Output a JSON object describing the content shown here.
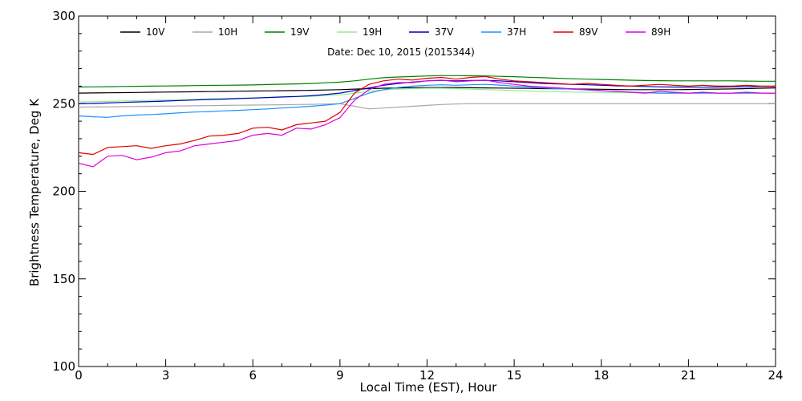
{
  "chart_data": {
    "type": "line",
    "title": "Date: Dec 10, 2015 (2015344)",
    "xlabel": "Local Time (EST), Hour",
    "ylabel": "Brightness Temperature, Deg K",
    "xlim": [
      0,
      24
    ],
    "ylim": [
      100,
      300
    ],
    "xticks": [
      "0",
      "3",
      "6",
      "9",
      "12",
      "15",
      "18",
      "21",
      "24"
    ],
    "yticks": [
      "100",
      "150",
      "200",
      "250",
      "300"
    ],
    "grid": false,
    "legend_position": "top",
    "x": [
      0,
      0.5,
      1,
      1.5,
      2,
      2.5,
      3,
      3.5,
      4,
      4.5,
      5,
      5.5,
      6,
      6.5,
      7,
      7.5,
      8,
      8.5,
      9,
      9.5,
      10,
      10.5,
      11,
      11.5,
      12,
      12.5,
      13,
      13.5,
      14,
      14.5,
      15,
      15.5,
      16,
      16.5,
      17,
      17.5,
      18,
      18.5,
      19,
      19.5,
      20,
      20.5,
      21,
      21.5,
      22,
      22.5,
      23,
      23.5,
      24
    ],
    "series": [
      {
        "name": "10V",
        "color": "#000000",
        "values": [
          256.0,
          256.1,
          256.2,
          256.3,
          256.4,
          256.5,
          256.6,
          256.7,
          256.8,
          256.9,
          257.0,
          257.1,
          257.2,
          257.3,
          257.4,
          257.5,
          257.6,
          257.8,
          258.0,
          258.3,
          258.6,
          258.8,
          259.0,
          259.1,
          259.2,
          259.2,
          259.2,
          259.1,
          259.0,
          258.9,
          258.8,
          258.7,
          258.6,
          258.5,
          258.4,
          258.3,
          258.2,
          258.1,
          258.0,
          258.0,
          258.0,
          258.0,
          258.1,
          258.2,
          258.3,
          258.4,
          258.6,
          258.8,
          259.0
        ]
      },
      {
        "name": "10H",
        "color": "#a8a8a8",
        "values": [
          248.0,
          248.1,
          248.2,
          248.3,
          248.4,
          248.5,
          248.6,
          248.7,
          248.8,
          248.9,
          249.0,
          249.1,
          249.2,
          249.3,
          249.4,
          249.5,
          249.6,
          249.8,
          250.0,
          248.5,
          247.0,
          247.5,
          248.0,
          248.5,
          249.0,
          249.5,
          249.8,
          250.0,
          250.0,
          250.0,
          250.0,
          250.0,
          250.0,
          250.0,
          250.0,
          250.0,
          250.0,
          250.0,
          250.0,
          250.0,
          250.0,
          250.0,
          250.0,
          250.0,
          250.0,
          250.0,
          250.0,
          250.0,
          250.0
        ]
      },
      {
        "name": "19V",
        "color": "#008000",
        "values": [
          259.5,
          259.6,
          259.7,
          259.8,
          259.9,
          260.0,
          260.1,
          260.2,
          260.3,
          260.4,
          260.5,
          260.6,
          260.7,
          260.9,
          261.1,
          261.3,
          261.5,
          261.9,
          262.3,
          263.0,
          264.0,
          264.8,
          265.2,
          265.5,
          265.8,
          266.0,
          266.0,
          265.9,
          265.8,
          265.6,
          265.4,
          265.1,
          264.8,
          264.5,
          264.2,
          264.0,
          263.8,
          263.6,
          263.4,
          263.2,
          263.1,
          263.0,
          263.0,
          263.0,
          263.0,
          263.0,
          262.9,
          262.8,
          262.8
        ]
      },
      {
        "name": "19H",
        "color": "#90ee90",
        "values": [
          251.0,
          251.1,
          251.3,
          251.5,
          251.7,
          251.9,
          252.1,
          252.3,
          252.5,
          252.7,
          252.9,
          253.1,
          253.3,
          253.5,
          253.7,
          253.9,
          254.2,
          254.6,
          255.0,
          256.0,
          257.0,
          257.8,
          258.3,
          258.6,
          258.8,
          258.8,
          258.6,
          258.3,
          258.0,
          257.8,
          257.5,
          257.2,
          257.0,
          256.8,
          256.6,
          256.5,
          256.4,
          256.3,
          256.2,
          256.1,
          256.0,
          256.0,
          256.0,
          256.0,
          256.0,
          256.0,
          256.0,
          256.0,
          256.0
        ]
      },
      {
        "name": "37V",
        "color": "#0000c0",
        "values": [
          250.0,
          250.1,
          250.4,
          250.7,
          251.0,
          251.2,
          251.5,
          251.8,
          252.1,
          252.4,
          252.6,
          252.9,
          253.2,
          253.5,
          253.8,
          254.1,
          254.5,
          255.2,
          256.0,
          257.5,
          259.0,
          260.5,
          261.5,
          262.3,
          263.0,
          263.3,
          263.0,
          263.2,
          263.3,
          263.0,
          262.5,
          262.0,
          261.5,
          261.3,
          261.0,
          260.8,
          260.5,
          260.2,
          260.0,
          259.8,
          259.6,
          259.5,
          259.4,
          259.4,
          259.5,
          259.6,
          259.7,
          259.8,
          259.8
        ]
      },
      {
        "name": "37H",
        "color": "#1e90ff",
        "values": [
          243.0,
          242.5,
          242.2,
          243.0,
          243.5,
          243.8,
          244.2,
          244.8,
          245.2,
          245.5,
          245.9,
          246.2,
          246.6,
          247.0,
          247.5,
          248.0,
          248.5,
          249.2,
          250.0,
          253.0,
          256.0,
          258.0,
          259.2,
          260.0,
          260.5,
          260.8,
          260.5,
          260.8,
          261.0,
          260.6,
          260.0,
          259.5,
          259.0,
          258.6,
          258.2,
          257.8,
          257.4,
          257.0,
          256.6,
          256.3,
          256.0,
          256.0,
          256.0,
          256.0,
          256.0,
          256.0,
          256.0,
          256.0,
          256.0
        ]
      },
      {
        "name": "89V",
        "color": "#e00000",
        "values": [
          222.0,
          221.0,
          225.0,
          225.5,
          226.0,
          224.5,
          226.0,
          227.0,
          229.0,
          231.5,
          232.0,
          233.0,
          236.0,
          236.5,
          235.0,
          238.0,
          239.0,
          240.0,
          245.0,
          256.0,
          261.0,
          263.0,
          264.0,
          263.5,
          264.5,
          265.0,
          264.0,
          265.0,
          265.5,
          264.0,
          263.0,
          262.5,
          262.0,
          261.5,
          261.0,
          261.5,
          261.0,
          260.5,
          260.0,
          260.5,
          261.0,
          260.5,
          260.0,
          260.5,
          260.0,
          260.0,
          260.5,
          260.0,
          260.0
        ]
      },
      {
        "name": "89H",
        "color": "#e000e0",
        "values": [
          216.0,
          214.0,
          220.0,
          220.5,
          218.0,
          219.5,
          222.0,
          223.0,
          226.0,
          227.0,
          228.0,
          229.0,
          232.0,
          233.0,
          232.0,
          236.0,
          235.5,
          238.0,
          242.0,
          252.0,
          258.0,
          261.0,
          262.0,
          262.0,
          263.0,
          263.5,
          262.5,
          263.0,
          263.5,
          262.0,
          261.0,
          260.0,
          259.5,
          259.0,
          258.5,
          258.0,
          257.5,
          257.0,
          256.5,
          256.0,
          257.0,
          256.5,
          256.0,
          256.5,
          256.0,
          256.0,
          256.5,
          256.0,
          256.0
        ]
      }
    ]
  }
}
